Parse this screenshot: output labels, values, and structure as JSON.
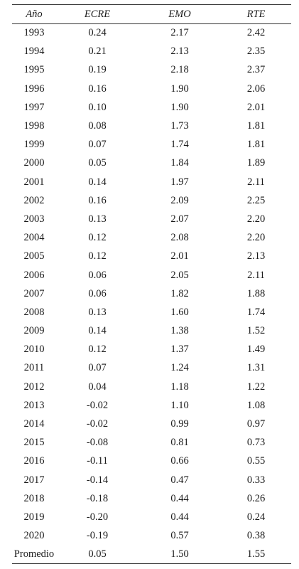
{
  "table": {
    "headers": [
      "Año",
      "ECRE",
      "EMO",
      "RTE"
    ],
    "rows": [
      [
        "1993",
        "0.24",
        "2.17",
        "2.42"
      ],
      [
        "1994",
        "0.21",
        "2.13",
        "2.35"
      ],
      [
        "1995",
        "0.19",
        "2.18",
        "2.37"
      ],
      [
        "1996",
        "0.16",
        "1.90",
        "2.06"
      ],
      [
        "1997",
        "0.10",
        "1.90",
        "2.01"
      ],
      [
        "1998",
        "0.08",
        "1.73",
        "1.81"
      ],
      [
        "1999",
        "0.07",
        "1.74",
        "1.81"
      ],
      [
        "2000",
        "0.05",
        "1.84",
        "1.89"
      ],
      [
        "2001",
        "0.14",
        "1.97",
        "2.11"
      ],
      [
        "2002",
        "0.16",
        "2.09",
        "2.25"
      ],
      [
        "2003",
        "0.13",
        "2.07",
        "2.20"
      ],
      [
        "2004",
        "0.12",
        "2.08",
        "2.20"
      ],
      [
        "2005",
        "0.12",
        "2.01",
        "2.13"
      ],
      [
        "2006",
        "0.06",
        "2.05",
        "2.11"
      ],
      [
        "2007",
        "0.06",
        "1.82",
        "1.88"
      ],
      [
        "2008",
        "0.13",
        "1.60",
        "1.74"
      ],
      [
        "2009",
        "0.14",
        "1.38",
        "1.52"
      ],
      [
        "2010",
        "0.12",
        "1.37",
        "1.49"
      ],
      [
        "2011",
        "0.07",
        "1.24",
        "1.31"
      ],
      [
        "2012",
        "0.04",
        "1.18",
        "1.22"
      ],
      [
        "2013",
        "-0.02",
        "1.10",
        "1.08"
      ],
      [
        "2014",
        "-0.02",
        "0.99",
        "0.97"
      ],
      [
        "2015",
        "-0.08",
        "0.81",
        "0.73"
      ],
      [
        "2016",
        "-0.11",
        "0.66",
        "0.55"
      ],
      [
        "2017",
        "-0.14",
        "0.47",
        "0.33"
      ],
      [
        "2018",
        "-0.18",
        "0.44",
        "0.26"
      ],
      [
        "2019",
        "-0.20",
        "0.44",
        "0.24"
      ],
      [
        "2020",
        "-0.19",
        "0.57",
        "0.38"
      ],
      [
        "Promedio",
        "0.05",
        "1.50",
        "1.55"
      ]
    ]
  }
}
